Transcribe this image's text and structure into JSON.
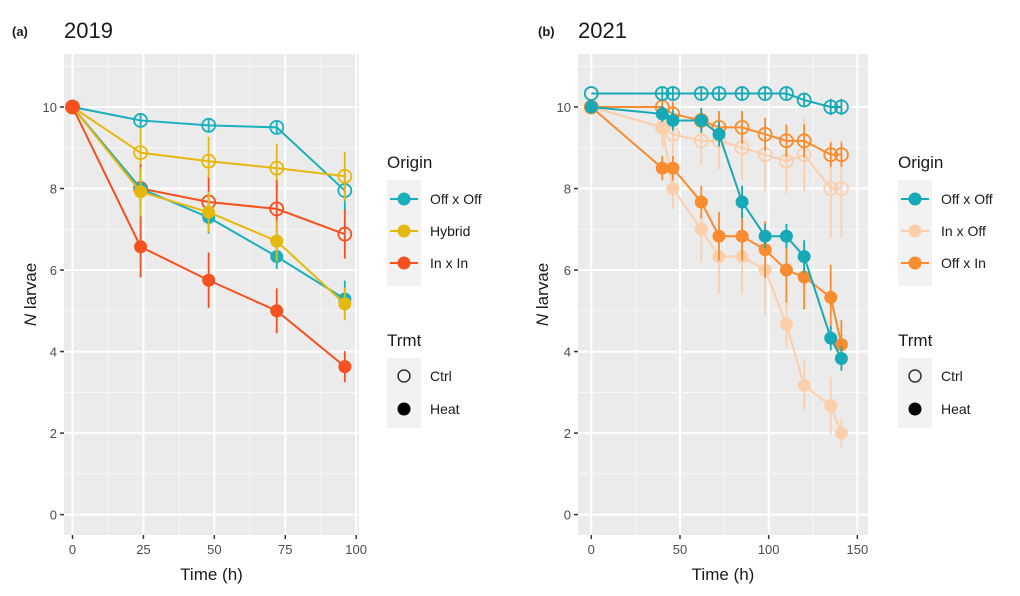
{
  "chart_data": [
    {
      "type": "line",
      "panel_tag": "(a)",
      "title": "2019",
      "xlabel": "Time (h)",
      "ylabel_italic": "N",
      "ylabel_rest": " larvae",
      "xlim": [
        -3,
        101
      ],
      "ylim": [
        -0.5,
        11.3
      ],
      "xticks": [
        0,
        25,
        50,
        75,
        100
      ],
      "yticks": [
        0,
        2,
        4,
        6,
        8,
        10
      ],
      "grid": true,
      "legend": {
        "placement": "right",
        "origin_title": "Origin",
        "trmt_title": "Trmt",
        "origin_entries": [
          {
            "label": "Off x Off",
            "color": "#1AAFBC"
          },
          {
            "label": "Hybrid",
            "color": "#E6B80E"
          },
          {
            "label": "In x In",
            "color": "#F5501E"
          }
        ],
        "trmt_entries": [
          {
            "label": "Ctrl",
            "shape": "open-circle"
          },
          {
            "label": "Heat",
            "shape": "filled-circle"
          }
        ]
      },
      "series": [
        {
          "name": "Off x Off – Ctrl",
          "origin": "Off x Off",
          "trmt": "Ctrl",
          "color": "#1AAFBC",
          "x": [
            0,
            24,
            48,
            72,
            96
          ],
          "y": [
            10,
            9.67,
            9.55,
            9.5,
            7.95
          ],
          "err": [
            0,
            0.15,
            0.15,
            0.15,
            0.5
          ]
        },
        {
          "name": "Hybrid – Ctrl",
          "origin": "Hybrid",
          "trmt": "Ctrl",
          "color": "#E6B80E",
          "x": [
            0,
            24,
            48,
            72,
            96
          ],
          "y": [
            10,
            8.88,
            8.67,
            8.5,
            8.3
          ],
          "err": [
            0,
            0.6,
            0.6,
            0.6,
            0.6
          ]
        },
        {
          "name": "In x In – Ctrl",
          "origin": "In x In",
          "trmt": "Ctrl",
          "color": "#F5501E",
          "x": [
            0,
            24,
            48,
            72,
            96
          ],
          "y": [
            10,
            8.0,
            7.67,
            7.5,
            6.88
          ],
          "err": [
            0,
            0.6,
            0.6,
            0.7,
            0.6
          ]
        },
        {
          "name": "Off x Off – Heat",
          "origin": "Off x Off",
          "trmt": "Heat",
          "color": "#1AAFBC",
          "x": [
            0,
            24,
            48,
            72,
            96
          ],
          "y": [
            10,
            8.0,
            7.29,
            6.33,
            5.29
          ],
          "err": [
            0,
            0.5,
            0.4,
            0.3,
            0.45
          ]
        },
        {
          "name": "Hybrid – Heat",
          "origin": "Hybrid",
          "trmt": "Heat",
          "color": "#E6B80E",
          "x": [
            0,
            24,
            48,
            72,
            96
          ],
          "y": [
            10,
            7.92,
            7.42,
            6.71,
            5.17
          ],
          "err": [
            0,
            0.6,
            0.5,
            0.5,
            0.4
          ]
        },
        {
          "name": "In x In – Heat",
          "origin": "In x In",
          "trmt": "Heat",
          "color": "#F5501E",
          "x": [
            0,
            24,
            48,
            72,
            96
          ],
          "y": [
            10,
            6.57,
            5.75,
            5.0,
            3.63
          ],
          "err": [
            0,
            0.75,
            0.68,
            0.55,
            0.38
          ]
        }
      ]
    },
    {
      "type": "line",
      "panel_tag": "(b)",
      "title": "2021",
      "xlabel": "Time (h)",
      "ylabel_italic": "N",
      "ylabel_rest": " larvae",
      "xlim": [
        -7.5,
        156
      ],
      "ylim": [
        -0.5,
        11.3
      ],
      "xticks": [
        0,
        50,
        100,
        150
      ],
      "yticks": [
        0,
        2,
        4,
        6,
        8,
        10
      ],
      "grid": true,
      "legend": {
        "placement": "right",
        "origin_title": "Origin",
        "trmt_title": "Trmt",
        "origin_entries": [
          {
            "label": "Off x Off",
            "color": "#17A9B6"
          },
          {
            "label": "In x Off",
            "color": "#FBCFAB"
          },
          {
            "label": "Off x In",
            "color": "#F98C2F"
          }
        ],
        "trmt_entries": [
          {
            "label": "Ctrl",
            "shape": "open-circle"
          },
          {
            "label": "Heat",
            "shape": "filled-circle"
          }
        ]
      },
      "series": [
        {
          "name": "In x Off – Ctrl",
          "origin": "In x Off",
          "trmt": "Ctrl",
          "color": "#FBCFAB",
          "x": [
            0,
            40,
            46,
            62,
            72,
            85,
            98,
            110,
            120,
            135,
            141
          ],
          "y": [
            10,
            9.5,
            9.33,
            9.17,
            9.17,
            9.0,
            8.83,
            8.67,
            8.83,
            8.0,
            8.0
          ],
          "err": [
            0,
            0.5,
            0.5,
            0.6,
            0.7,
            0.8,
            0.9,
            0.8,
            0.9,
            1.2,
            1.2
          ]
        },
        {
          "name": "In x Off – Heat",
          "origin": "In x Off",
          "trmt": "Heat",
          "color": "#FBCFAB",
          "x": [
            0,
            40,
            46,
            62,
            72,
            85,
            98,
            110,
            120,
            135,
            141
          ],
          "y": [
            10,
            9.5,
            8.0,
            7.0,
            6.33,
            6.33,
            6.0,
            4.67,
            3.17,
            2.67,
            2.0
          ],
          "err": [
            0,
            0.4,
            0.5,
            0.8,
            0.9,
            0.9,
            1.1,
            0.6,
            0.6,
            0.7,
            0.35
          ]
        },
        {
          "name": "Off x In – Ctrl",
          "origin": "Off x In",
          "trmt": "Ctrl",
          "color": "#F98C2F",
          "x": [
            0,
            40,
            46,
            62,
            72,
            85,
            98,
            110,
            120,
            135,
            141
          ],
          "y": [
            10,
            10,
            9.83,
            9.67,
            9.5,
            9.5,
            9.33,
            9.17,
            9.17,
            8.83,
            8.83
          ],
          "err": [
            0,
            0.2,
            0.3,
            0.3,
            0.4,
            0.4,
            0.4,
            0.4,
            0.4,
            0.3,
            0.3
          ]
        },
        {
          "name": "Off x In – Heat",
          "origin": "Off x In",
          "trmt": "Heat",
          "color": "#F98C2F",
          "x": [
            0,
            40,
            46,
            62,
            72,
            85,
            98,
            110,
            120,
            135,
            141
          ],
          "y": [
            10,
            8.5,
            8.5,
            7.67,
            6.83,
            6.83,
            6.5,
            6.0,
            5.83,
            5.33,
            4.17
          ],
          "err": [
            0,
            0.3,
            0.3,
            0.4,
            0.6,
            0.6,
            0.7,
            0.8,
            0.8,
            0.8,
            0.6
          ]
        },
        {
          "name": "Off x Off – Ctrl",
          "origin": "Off x Off",
          "trmt": "Ctrl",
          "color": "#17A9B6",
          "x": [
            0,
            40,
            46,
            62,
            72,
            85,
            98,
            110,
            120,
            135,
            141
          ],
          "y": [
            10.33,
            10.33,
            10.33,
            10.33,
            10.33,
            10.33,
            10.33,
            10.33,
            10.17,
            10.0,
            10.0
          ],
          "err": [
            0,
            0.15,
            0.15,
            0.15,
            0.15,
            0.15,
            0.15,
            0.15,
            0.15,
            0.2,
            0.2
          ]
        },
        {
          "name": "Off x Off – Heat",
          "origin": "Off x Off",
          "trmt": "Heat",
          "color": "#17A9B6",
          "x": [
            0,
            40,
            46,
            62,
            72,
            85,
            98,
            110,
            120,
            135,
            141
          ],
          "y": [
            10,
            9.83,
            9.67,
            9.67,
            9.33,
            7.67,
            6.83,
            6.83,
            6.33,
            4.33,
            3.83
          ],
          "err": [
            0,
            0.2,
            0.25,
            0.3,
            0.3,
            0.4,
            0.3,
            0.3,
            0.4,
            0.3,
            0.3
          ]
        }
      ]
    }
  ]
}
